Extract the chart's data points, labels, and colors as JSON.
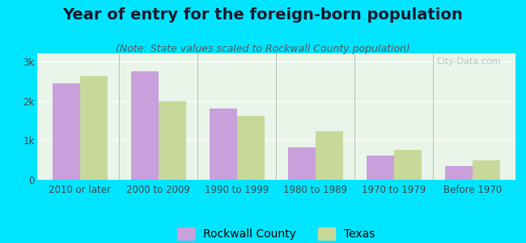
{
  "title": "Year of entry for the foreign-born population",
  "subtitle": "(Note: State values scaled to Rockwall County population)",
  "categories": [
    "2010 or later",
    "2000 to 2009",
    "1990 to 1999",
    "1980 to 1989",
    "1970 to 1979",
    "Before 1970"
  ],
  "rockwall_values": [
    2450,
    2750,
    1800,
    830,
    620,
    340
  ],
  "texas_values": [
    2630,
    1980,
    1620,
    1230,
    750,
    490
  ],
  "rockwall_color": "#c9a0dc",
  "texas_color": "#c8d89a",
  "background_outer": "#00e5ff",
  "background_inner": "#e8f5e8",
  "ylim": [
    0,
    3200
  ],
  "yticks": [
    0,
    1000,
    2000,
    3000
  ],
  "ytick_labels": [
    "0",
    "1k",
    "2k",
    "3k"
  ],
  "legend_rockwall": "Rockwall County",
  "legend_texas": "Texas",
  "bar_width": 0.35,
  "title_fontsize": 14,
  "subtitle_fontsize": 9,
  "tick_fontsize": 8.5,
  "legend_fontsize": 10
}
